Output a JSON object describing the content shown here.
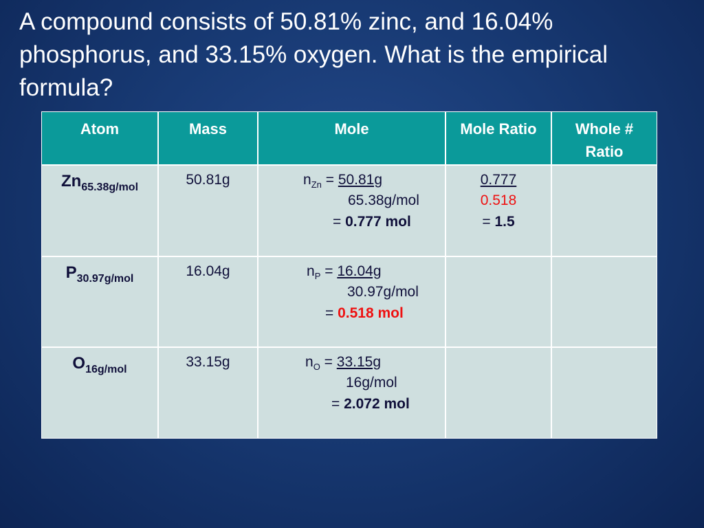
{
  "title": "A compound consists of 50.81% zinc, and 16.04% phosphorus, and 33.15% oxygen. What is the empirical formula?",
  "table": {
    "headers": [
      "Atom",
      "Mass",
      "Mole",
      "Mole Ratio",
      "Whole # Ratio"
    ],
    "rows": [
      {
        "atom": {
          "symbol": "Zn",
          "sub": "65.38g/mol"
        },
        "mass": "50.81g",
        "mole": {
          "n": "n",
          "sub": "Zn",
          "eq": "=",
          "numerator": "50.81g",
          "denominator": "65.38g/mol",
          "result_eq": "=",
          "result": "0.777 mol"
        },
        "ratio": {
          "numerator": "0.777",
          "denominator": "0.518",
          "eq": "=",
          "result": "1.5"
        }
      },
      {
        "atom": {
          "symbol": "P",
          "sub": "30.97g/mol"
        },
        "mass": "16.04g",
        "mole": {
          "n": "n",
          "sub": "P",
          "eq": "=",
          "numerator": "16.04g",
          "denominator": "30.97g/mol",
          "result_eq": "=",
          "result": "0.518 mol"
        }
      },
      {
        "atom": {
          "symbol": "O",
          "sub": "16g/mol"
        },
        "mass": "33.15g",
        "mole": {
          "n": "n",
          "sub": "O",
          "eq": "=",
          "numerator": "33.15g",
          "denominator": "16g/mol",
          "result_eq": "=",
          "result": "2.072 mol"
        }
      }
    ]
  }
}
